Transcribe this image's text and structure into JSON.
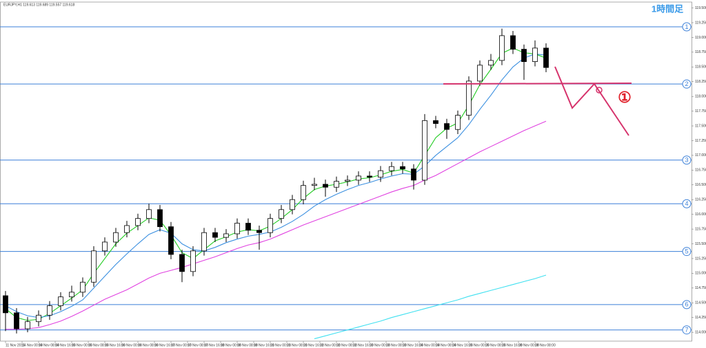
{
  "chart_data": {
    "type": "candlestick",
    "header": "EURJPY,H1 119.613 119.689 119.557 119.618",
    "title": "1時間足",
    "annotation": "①",
    "ylim": [
      113.85,
      119.6
    ],
    "yticks": [
      {
        "value": 114,
        "label": "114.000"
      },
      {
        "value": 114.25,
        "label": "114.250"
      },
      {
        "value": 114.5,
        "label": "114.500"
      },
      {
        "value": 114.75,
        "label": "114.750"
      },
      {
        "value": 115,
        "label": "115.000"
      },
      {
        "value": 115.25,
        "label": "115.250"
      },
      {
        "value": 115.5,
        "label": "115.500"
      },
      {
        "value": 115.75,
        "label": "115.750"
      },
      {
        "value": 116,
        "label": "116.000"
      },
      {
        "value": 116.25,
        "label": "116.250"
      },
      {
        "value": 116.5,
        "label": "116.500"
      },
      {
        "value": 116.75,
        "label": "116.750"
      },
      {
        "value": 117,
        "label": "117.000"
      },
      {
        "value": 117.25,
        "label": "117.250"
      },
      {
        "value": 117.5,
        "label": "117.500"
      },
      {
        "value": 117.75,
        "label": "117.750"
      },
      {
        "value": 118,
        "label": "118.000"
      },
      {
        "value": 118.25,
        "label": "118.250"
      },
      {
        "value": 118.5,
        "label": "118.500"
      },
      {
        "value": 118.75,
        "label": "118.750"
      },
      {
        "value": 119,
        "label": "119.000"
      },
      {
        "value": 119.25,
        "label": "119.250"
      },
      {
        "value": 119.5,
        "label": "119.500"
      }
    ],
    "xticks": [
      {
        "value": 0,
        "label": "11 Nov 2016"
      },
      {
        "value": 1.5,
        "label": "14 Nov 00:00"
      },
      {
        "value": 3,
        "label": "14 Nov 08:00"
      },
      {
        "value": 4.5,
        "label": "14 Nov 16:00"
      },
      {
        "value": 6,
        "label": "15 Nov 00:00"
      },
      {
        "value": 7.5,
        "label": "15 Nov 08:00"
      },
      {
        "value": 9,
        "label": "15 Nov 16:00"
      },
      {
        "value": 10.5,
        "label": "16 Nov 00:00"
      },
      {
        "value": 12,
        "label": "16 Nov 08:00"
      },
      {
        "value": 13.5,
        "label": "16 Nov 16:00"
      },
      {
        "value": 15,
        "label": "17 Nov 00:00"
      },
      {
        "value": 16.5,
        "label": "17 Nov 08:00"
      },
      {
        "value": 18,
        "label": "17 Nov 16:00"
      },
      {
        "value": 19.5,
        "label": "18 Nov 00:00"
      },
      {
        "value": 21,
        "label": "18 Nov 08:00"
      },
      {
        "value": 22.5,
        "label": "18 Nov 16:00"
      },
      {
        "value": 24,
        "label": "21 Nov 00:00"
      },
      {
        "value": 25.5,
        "label": "21 Nov 08:00"
      },
      {
        "value": 27,
        "label": "21 Nov 16:00"
      },
      {
        "value": 28.5,
        "label": "22 Nov 00:00"
      },
      {
        "value": 30,
        "label": "22 Nov 08:00"
      },
      {
        "value": 31.5,
        "label": "22 Nov 16:00"
      },
      {
        "value": 33,
        "label": "23 Nov 00:00"
      },
      {
        "value": 34.5,
        "label": "23 Nov 08:00"
      },
      {
        "value": 36,
        "label": "23 Nov 16:00"
      },
      {
        "value": 37.5,
        "label": "24 Nov 00:00"
      },
      {
        "value": 39,
        "label": "24 Nov 08:00"
      },
      {
        "value": 40.5,
        "label": "24 Nov 16:00"
      },
      {
        "value": 42,
        "label": "25 Nov 00:00"
      },
      {
        "value": 43.5,
        "label": "25 Nov 08:00"
      },
      {
        "value": 45,
        "label": "25 Nov 16:00"
      },
      {
        "value": 46.5,
        "label": "28 Nov 00:00"
      },
      {
        "value": 48,
        "label": "28 Nov 08:00"
      }
    ],
    "open": [
      114.62,
      114.33,
      114.06,
      114.18,
      114.29,
      114.45,
      114.6,
      114.68,
      114.85,
      115.38,
      115.53,
      115.69,
      115.81,
      115.93,
      116.08,
      115.79,
      115.32,
      115.03,
      115.38,
      115.69,
      115.61,
      115.67,
      115.85,
      115.73,
      115.69,
      115.93,
      116.08,
      116.25,
      116.49,
      116.51,
      116.46,
      116.56,
      116.58,
      116.65,
      116.63,
      116.74,
      116.81,
      116.77,
      116.58,
      117.59,
      117.54,
      117.44,
      117.68,
      118.26,
      118.53,
      118.61,
      119.03,
      118.8,
      118.59,
      118.82
    ],
    "high": [
      114.7,
      114.41,
      114.26,
      114.37,
      114.53,
      114.68,
      114.79,
      114.93,
      115.46,
      115.61,
      115.77,
      115.89,
      116.01,
      116.18,
      116.16,
      115.87,
      115.4,
      115.46,
      115.77,
      115.77,
      115.75,
      115.93,
      115.93,
      115.81,
      116.01,
      116.16,
      116.33,
      116.57,
      116.62,
      116.59,
      116.64,
      116.66,
      116.73,
      116.73,
      116.82,
      116.89,
      116.89,
      116.85,
      117.7,
      117.67,
      117.62,
      117.76,
      118.34,
      118.61,
      118.72,
      119.15,
      119.11,
      118.88,
      118.95,
      118.9
    ],
    "low": [
      114.02,
      113.98,
      114.0,
      114.1,
      114.21,
      114.37,
      114.52,
      114.6,
      114.77,
      115.3,
      115.45,
      115.61,
      115.73,
      115.85,
      115.71,
      115.24,
      114.85,
      114.95,
      115.3,
      115.53,
      115.53,
      115.59,
      115.65,
      115.4,
      115.61,
      115.85,
      116.0,
      116.17,
      116.41,
      116.3,
      116.38,
      116.48,
      116.5,
      116.55,
      116.55,
      116.66,
      116.69,
      116.42,
      116.5,
      117.46,
      117.28,
      117.36,
      117.6,
      118.18,
      118.45,
      118.53,
      118.72,
      118.28,
      118.51,
      118.41
    ],
    "close": [
      114.33,
      114.06,
      114.18,
      114.29,
      114.45,
      114.6,
      114.68,
      114.85,
      115.38,
      115.53,
      115.69,
      115.81,
      115.93,
      116.08,
      115.79,
      115.32,
      115.03,
      115.38,
      115.69,
      115.61,
      115.67,
      115.85,
      115.73,
      115.69,
      115.93,
      116.08,
      116.25,
      116.49,
      116.51,
      116.46,
      116.56,
      116.58,
      116.65,
      116.63,
      116.74,
      116.81,
      116.77,
      116.58,
      117.59,
      117.54,
      117.44,
      117.68,
      118.26,
      118.53,
      118.61,
      119.03,
      118.8,
      118.59,
      118.82,
      118.49
    ],
    "series": [
      {
        "color": "#22cc22",
        "values": [
          114.4,
          114.25,
          114.2,
          114.22,
          114.32,
          114.45,
          114.58,
          114.72,
          115.0,
          115.25,
          115.5,
          115.68,
          115.81,
          115.94,
          115.9,
          115.65,
          115.35,
          115.25,
          115.4,
          115.55,
          115.62,
          115.7,
          115.74,
          115.72,
          115.8,
          115.93,
          116.08,
          116.27,
          116.42,
          116.48,
          116.51,
          116.55,
          116.6,
          116.62,
          116.67,
          116.73,
          116.76,
          116.7,
          117.0,
          117.3,
          117.46,
          117.55,
          117.85,
          118.2,
          118.46,
          118.73,
          118.82,
          118.74,
          118.72,
          118.65
        ]
      },
      {
        "color": "#3a8fe0",
        "values": [
          114.45,
          114.35,
          114.28,
          114.25,
          114.28,
          114.35,
          114.44,
          114.55,
          114.75,
          114.95,
          115.15,
          115.33,
          115.5,
          115.66,
          115.74,
          115.68,
          115.5,
          115.4,
          115.38,
          115.44,
          115.52,
          115.58,
          115.63,
          115.66,
          115.7,
          115.78,
          115.88,
          116.0,
          116.14,
          116.25,
          116.34,
          116.42,
          116.49,
          116.54,
          116.6,
          116.65,
          116.69,
          116.68,
          116.82,
          117.0,
          117.15,
          117.3,
          117.52,
          117.78,
          118.02,
          118.28,
          118.5,
          118.65,
          118.72,
          118.7
        ]
      },
      {
        "color": "#e040e0",
        "values": [
          114.05,
          114.05,
          114.06,
          114.08,
          114.13,
          114.19,
          114.27,
          114.36,
          114.46,
          114.56,
          114.64,
          114.72,
          114.82,
          114.92,
          115.0,
          115.05,
          115.1,
          115.16,
          115.22,
          115.28,
          115.35,
          115.42,
          115.48,
          115.52,
          115.58,
          115.66,
          115.74,
          115.82,
          115.89,
          115.96,
          116.03,
          116.1,
          116.17,
          116.24,
          116.31,
          116.38,
          116.44,
          116.49,
          116.58,
          116.66,
          116.76,
          116.86,
          116.96,
          117.06,
          117.15,
          117.24,
          117.33,
          117.42,
          117.5,
          117.58
        ]
      },
      {
        "color": "#3ee0f0",
        "values": [
          null,
          null,
          null,
          null,
          null,
          null,
          null,
          null,
          null,
          null,
          null,
          null,
          null,
          null,
          null,
          null,
          null,
          null,
          null,
          null,
          null,
          null,
          null,
          null,
          null,
          null,
          null,
          null,
          113.89,
          113.94,
          113.99,
          114.04,
          114.09,
          114.14,
          114.19,
          114.25,
          114.3,
          114.35,
          114.4,
          114.45,
          114.5,
          114.55,
          114.61,
          114.66,
          114.71,
          114.76,
          114.81,
          114.86,
          114.91,
          114.97
        ]
      }
    ],
    "levels": [
      {
        "value": 119.18,
        "label": "1"
      },
      {
        "value": 118.21,
        "label": "2"
      },
      {
        "value": 116.92,
        "label": "3"
      },
      {
        "value": 116.18,
        "label": "4"
      },
      {
        "value": 115.37,
        "label": "5"
      },
      {
        "value": 114.47,
        "label": "6"
      },
      {
        "value": 114.04,
        "label": "7"
      }
    ],
    "level_color": "#3a7fd8",
    "up_color": "#ffffff",
    "down_color": "#000000"
  }
}
